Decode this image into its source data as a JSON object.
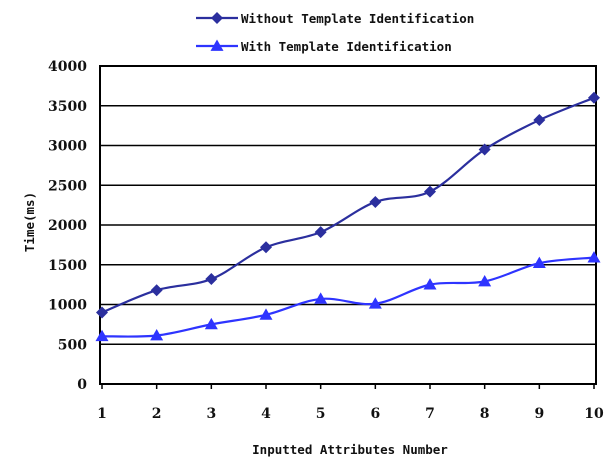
{
  "chart_data": {
    "type": "line",
    "title": "",
    "xlabel": "Inputted Attributes Number",
    "ylabel": "Time(ms)",
    "x": [
      1,
      2,
      3,
      4,
      5,
      6,
      7,
      8,
      9,
      10
    ],
    "xlim": [
      1,
      10
    ],
    "ylim": [
      0,
      4000
    ],
    "yticks": [
      0,
      500,
      1000,
      1500,
      2000,
      2500,
      3000,
      3500,
      4000
    ],
    "grid": "horizontal",
    "legend_position": "top",
    "series": [
      {
        "name": "Without Template Identification",
        "marker": "diamond",
        "color": "#2b2f9e",
        "values": [
          900,
          1180,
          1320,
          1720,
          1910,
          2290,
          2420,
          2950,
          3320,
          3600
        ]
      },
      {
        "name": "With Template Identification",
        "marker": "triangle",
        "color": "#2e34ff",
        "values": [
          600,
          610,
          750,
          870,
          1070,
          1010,
          1250,
          1290,
          1520,
          1590
        ]
      }
    ]
  }
}
